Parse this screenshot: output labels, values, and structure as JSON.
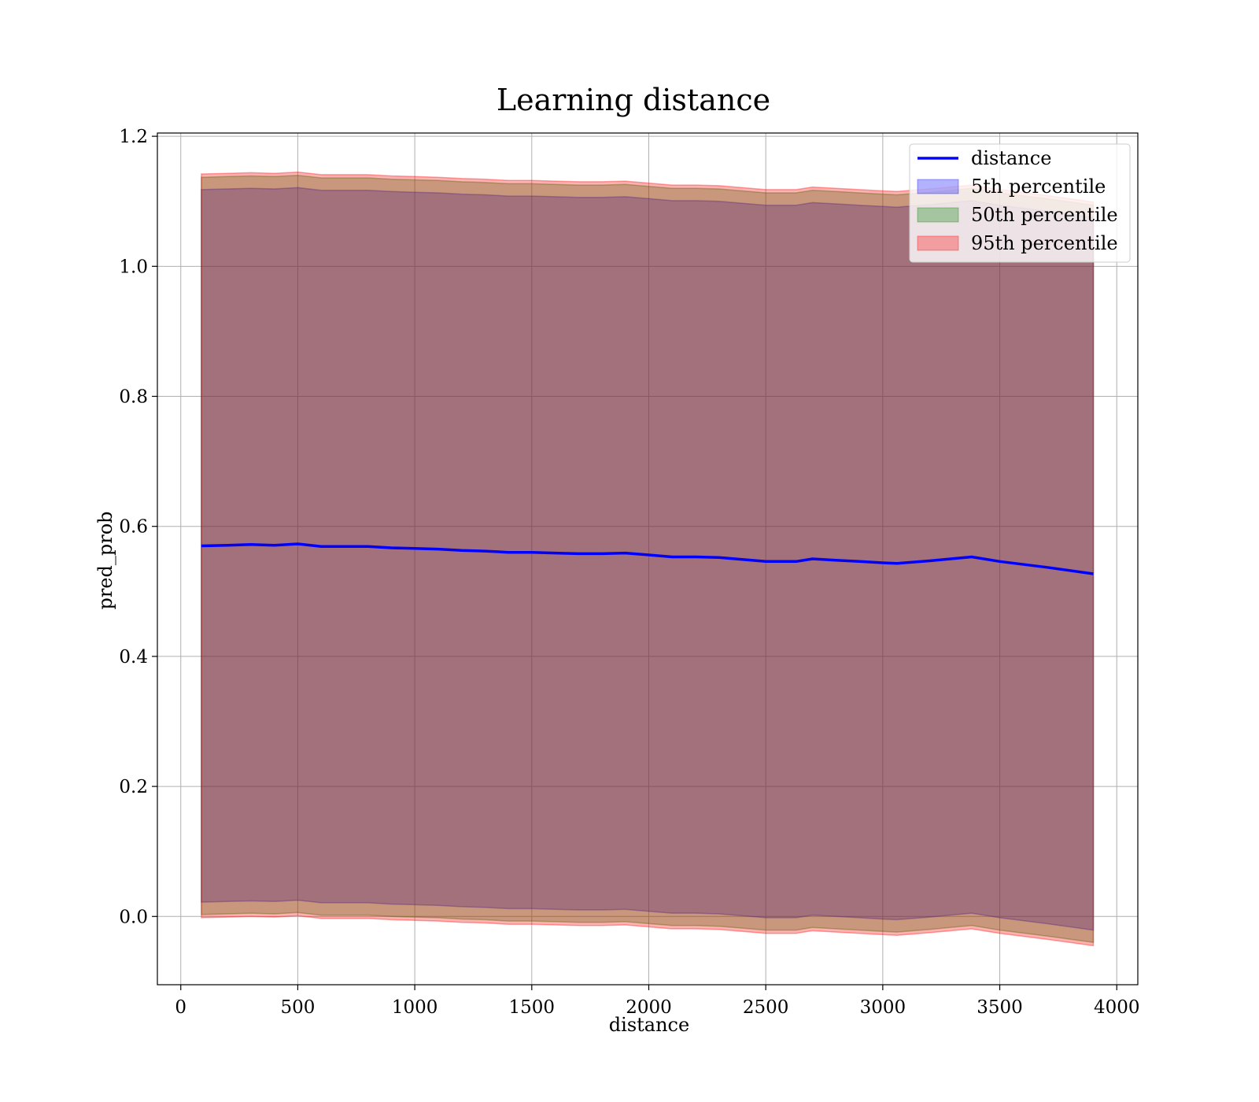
{
  "chart_data": {
    "type": "area",
    "title": "Learning distance",
    "xlabel": "distance",
    "ylabel": "pred_prob",
    "xlim": [
      -100,
      4090
    ],
    "ylim": [
      -0.105,
      1.205
    ],
    "xticks": [
      0,
      500,
      1000,
      1500,
      2000,
      2500,
      3000,
      3500,
      4000
    ],
    "yticks": [
      0.0,
      0.2,
      0.4,
      0.6,
      0.8,
      1.0,
      1.2
    ],
    "ytick_labels": [
      "0.0",
      "0.2",
      "0.4",
      "0.6",
      "0.8",
      "1.0",
      "1.2"
    ],
    "grid": true,
    "legend_position": "top-right",
    "x": [
      88,
      200,
      300,
      400,
      500,
      600,
      700,
      800,
      900,
      1000,
      1100,
      1200,
      1300,
      1400,
      1500,
      1600,
      1700,
      1800,
      1900,
      2000,
      2100,
      2200,
      2300,
      2400,
      2500,
      2630,
      2700,
      2800,
      2900,
      3000,
      3060,
      3200,
      3380,
      3500,
      3700,
      3900
    ],
    "series": [
      {
        "name": "distance",
        "kind": "line",
        "color": "#0000ff",
        "values": [
          0.57,
          0.571,
          0.572,
          0.571,
          0.573,
          0.569,
          0.569,
          0.569,
          0.567,
          0.566,
          0.565,
          0.563,
          0.562,
          0.56,
          0.56,
          0.559,
          0.558,
          0.558,
          0.559,
          0.556,
          0.553,
          0.553,
          0.552,
          0.549,
          0.546,
          0.546,
          0.55,
          0.548,
          0.546,
          0.544,
          0.543,
          0.547,
          0.553,
          0.546,
          0.537,
          0.527
        ]
      },
      {
        "name": "5th percentile",
        "kind": "band",
        "color": "#0000ff",
        "upper": [
          1.118,
          1.119,
          1.12,
          1.119,
          1.121,
          1.117,
          1.117,
          1.117,
          1.115,
          1.114,
          1.113,
          1.111,
          1.11,
          1.108,
          1.108,
          1.107,
          1.106,
          1.106,
          1.107,
          1.104,
          1.101,
          1.101,
          1.1,
          1.097,
          1.094,
          1.094,
          1.098,
          1.096,
          1.094,
          1.092,
          1.091,
          1.095,
          1.101,
          1.094,
          1.085,
          1.075
        ],
        "lower": [
          0.022,
          0.023,
          0.024,
          0.023,
          0.025,
          0.021,
          0.021,
          0.021,
          0.019,
          0.018,
          0.017,
          0.015,
          0.014,
          0.012,
          0.012,
          0.011,
          0.01,
          0.01,
          0.011,
          0.008,
          0.005,
          0.005,
          0.004,
          0.001,
          -0.002,
          -0.002,
          0.002,
          0.0,
          -0.002,
          -0.004,
          -0.005,
          -0.001,
          0.005,
          -0.002,
          -0.011,
          -0.021
        ]
      },
      {
        "name": "50th percentile",
        "kind": "band",
        "color": "#008000",
        "upper": [
          1.137,
          1.138,
          1.139,
          1.138,
          1.14,
          1.136,
          1.136,
          1.136,
          1.134,
          1.133,
          1.132,
          1.13,
          1.129,
          1.127,
          1.127,
          1.126,
          1.125,
          1.125,
          1.126,
          1.123,
          1.12,
          1.12,
          1.119,
          1.116,
          1.113,
          1.113,
          1.117,
          1.115,
          1.113,
          1.111,
          1.11,
          1.114,
          1.12,
          1.113,
          1.104,
          1.094
        ],
        "lower": [
          0.003,
          0.004,
          0.005,
          0.004,
          0.006,
          0.002,
          0.002,
          0.002,
          0.0,
          -0.001,
          -0.002,
          -0.004,
          -0.005,
          -0.007,
          -0.007,
          -0.008,
          -0.009,
          -0.009,
          -0.008,
          -0.011,
          -0.014,
          -0.014,
          -0.015,
          -0.018,
          -0.021,
          -0.021,
          -0.017,
          -0.019,
          -0.021,
          -0.023,
          -0.024,
          -0.02,
          -0.014,
          -0.021,
          -0.03,
          -0.04
        ]
      },
      {
        "name": "95th percentile",
        "kind": "band",
        "color": "#ff0000",
        "upper": [
          1.142,
          1.143,
          1.144,
          1.143,
          1.145,
          1.141,
          1.141,
          1.141,
          1.139,
          1.138,
          1.137,
          1.135,
          1.134,
          1.132,
          1.132,
          1.131,
          1.13,
          1.13,
          1.131,
          1.128,
          1.125,
          1.125,
          1.124,
          1.121,
          1.118,
          1.118,
          1.122,
          1.12,
          1.118,
          1.116,
          1.115,
          1.119,
          1.125,
          1.118,
          1.109,
          1.099
        ],
        "lower": [
          -0.002,
          -0.001,
          0.0,
          -0.001,
          0.001,
          -0.003,
          -0.003,
          -0.003,
          -0.005,
          -0.006,
          -0.007,
          -0.009,
          -0.01,
          -0.012,
          -0.012,
          -0.013,
          -0.014,
          -0.014,
          -0.013,
          -0.016,
          -0.019,
          -0.019,
          -0.02,
          -0.023,
          -0.026,
          -0.026,
          -0.022,
          -0.024,
          -0.026,
          -0.028,
          -0.029,
          -0.025,
          -0.019,
          -0.026,
          -0.035,
          -0.045
        ]
      }
    ]
  }
}
